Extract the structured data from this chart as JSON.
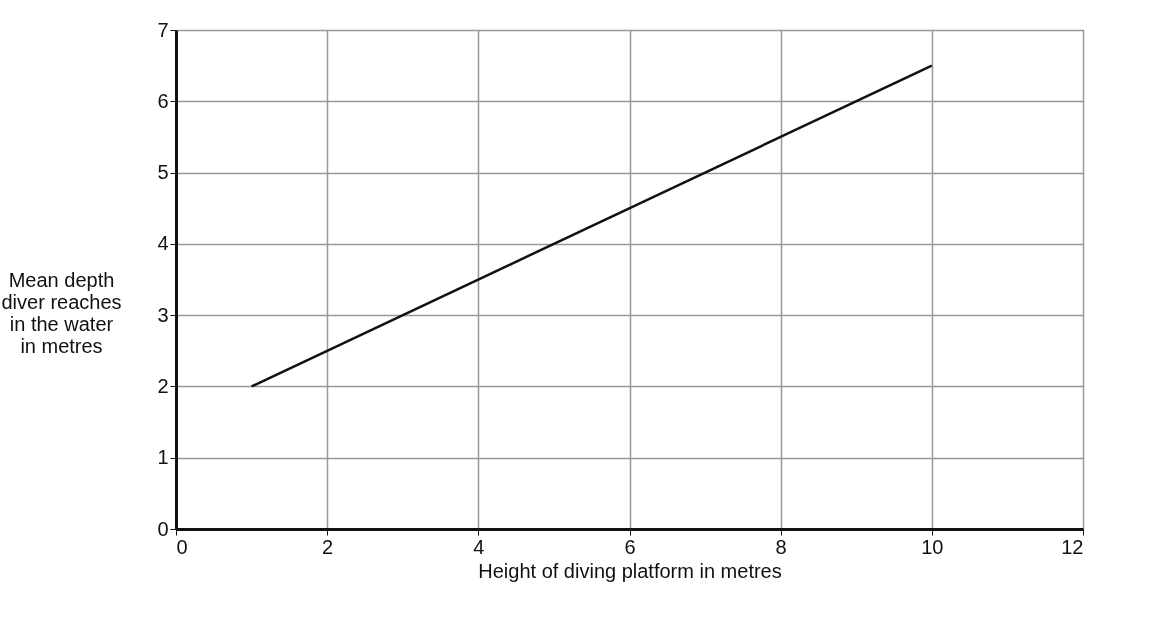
{
  "chart_data": {
    "type": "line",
    "xlabel": "Height of diving platform in metres",
    "ylabel": "Mean depth\ndiver reaches\nin the water\nin metres",
    "x": [
      1,
      10
    ],
    "series": [
      {
        "color": "#111111",
        "values": [
          2,
          6.5
        ]
      }
    ],
    "xlim": [
      0,
      12
    ],
    "xticks": [
      0,
      2,
      4,
      6,
      8,
      10,
      12
    ],
    "ylim": [
      0,
      7
    ],
    "yticks": [
      0,
      1,
      2,
      3,
      4,
      5,
      6,
      7
    ],
    "grid": true,
    "marker": "none",
    "line_style": "solid",
    "legend": false
  }
}
